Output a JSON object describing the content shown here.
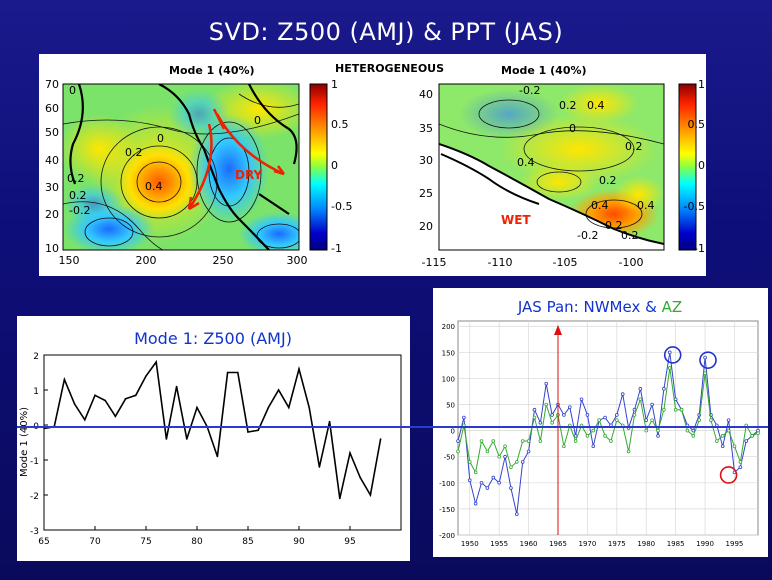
{
  "page_title": "SVD: Z500 (AMJ) & PPT (JAS)",
  "maps": {
    "left_title": "Mode 1 (40%)",
    "center_title": "HETEROGENEOUS",
    "right_title": "Mode 1 (40%)",
    "left_annotation": "DRY",
    "right_annotation": "WET",
    "left_xticks": [
      "150",
      "200",
      "250",
      "300"
    ],
    "left_yticks": [
      "70",
      "60",
      "50",
      "40",
      "30",
      "20",
      "10"
    ],
    "right_xticks": [
      "-115",
      "-110",
      "-105",
      "-100"
    ],
    "right_yticks": [
      "40",
      "35",
      "30",
      "25",
      "20"
    ],
    "colorbar_ticks": [
      "1",
      "0.5",
      "0",
      "-0.5",
      "-1"
    ],
    "left_contour_labels": [
      "0",
      "0.2",
      "0.4",
      "0.2",
      "0",
      "-0.2",
      "0.2",
      "0"
    ],
    "right_contour_labels": [
      "-0.2",
      "0.2",
      "0.4",
      "0",
      "0.2",
      "0.4",
      "0.2",
      "0.4",
      "0.4",
      "-0.2",
      "0.2",
      "0.2"
    ]
  },
  "chart_data": [
    {
      "type": "line",
      "title": "Mode 1: Z500 (AMJ)",
      "ylabel": "Mode 1 (40%)",
      "xticks": [
        "65",
        "70",
        "75",
        "80",
        "85",
        "90",
        "95"
      ],
      "yticks": [
        "2",
        "1",
        "0",
        "-1",
        "-2",
        "-3"
      ],
      "xlim": [
        65,
        100
      ],
      "ylim": [
        -3,
        2
      ],
      "x": [
        65,
        66,
        67,
        68,
        69,
        70,
        71,
        72,
        73,
        74,
        75,
        76,
        77,
        78,
        79,
        80,
        81,
        82,
        83,
        84,
        85,
        86,
        87,
        88,
        89,
        90,
        91,
        92,
        93,
        94,
        95,
        96,
        97,
        98
      ],
      "series": [
        {
          "values": [
            -0.1,
            -0.05,
            1.3,
            0.6,
            0.15,
            0.85,
            0.7,
            0.25,
            0.75,
            0.85,
            1.4,
            1.8,
            -0.4,
            1.1,
            -0.4,
            0.5,
            -0.05,
            -0.9,
            1.5,
            1.5,
            -0.2,
            -0.15,
            0.5,
            1.0,
            0.5,
            1.6,
            0.5,
            -1.2,
            0.1,
            -2.1,
            -0.8,
            -1.5,
            -2.0,
            -0.4
          ]
        }
      ],
      "color": "#000000"
    },
    {
      "type": "line",
      "title": "JAS Pan: NWMex & AZ",
      "title_parts": [
        "JAS Pan:  ",
        "NWMex",
        " & ",
        "AZ"
      ],
      "xticks": [
        "1950",
        "1955",
        "1960",
        "1965",
        "1970",
        "1975",
        "1980",
        "1985",
        "1990",
        "1995"
      ],
      "yticks": [
        "200",
        "150",
        "100",
        "50",
        "0",
        "-50",
        "-100",
        "-150",
        "-200"
      ],
      "xlim": [
        1948,
        1999
      ],
      "ylim": [
        -200,
        210
      ],
      "x": [
        1948,
        1949,
        1950,
        1951,
        1952,
        1953,
        1954,
        1955,
        1956,
        1957,
        1958,
        1959,
        1960,
        1961,
        1962,
        1963,
        1964,
        1965,
        1966,
        1967,
        1968,
        1969,
        1970,
        1971,
        1972,
        1973,
        1974,
        1975,
        1976,
        1977,
        1978,
        1979,
        1980,
        1981,
        1982,
        1983,
        1984,
        1985,
        1986,
        1987,
        1988,
        1989,
        1990,
        1991,
        1992,
        1993,
        1994,
        1995,
        1996,
        1997,
        1998,
        1999
      ],
      "series": [
        {
          "name": "NWMex",
          "color": "#3344cc",
          "values": [
            -20,
            25,
            -95,
            -140,
            -100,
            -110,
            -90,
            -100,
            -50,
            -110,
            -160,
            -60,
            -40,
            40,
            15,
            90,
            30,
            50,
            30,
            45,
            -10,
            60,
            30,
            -30,
            20,
            25,
            10,
            30,
            70,
            5,
            40,
            80,
            20,
            50,
            -10,
            80,
            150,
            60,
            40,
            10,
            0,
            30,
            140,
            30,
            10,
            -30,
            20,
            -80,
            -70,
            -20,
            -10,
            0
          ]
        },
        {
          "name": "AZ",
          "color": "#33aa33",
          "values": [
            -40,
            10,
            -60,
            -80,
            -20,
            -40,
            -20,
            -50,
            -30,
            -70,
            -60,
            -20,
            -20,
            25,
            -20,
            50,
            15,
            30,
            -30,
            10,
            -20,
            10,
            -10,
            0,
            20,
            -10,
            -20,
            20,
            10,
            -40,
            30,
            60,
            0,
            20,
            0,
            40,
            120,
            40,
            40,
            0,
            -10,
            20,
            110,
            20,
            -20,
            -10,
            0,
            -30,
            -60,
            10,
            -10,
            -5
          ]
        }
      ],
      "event_marker_x": 1965,
      "circled_years": [
        {
          "x": 1984.5,
          "y": 145,
          "color": "#2233cc"
        },
        {
          "x": 1990.5,
          "y": 135,
          "color": "#2233cc"
        },
        {
          "x": 1994,
          "y": -85,
          "color": "#dd1111"
        }
      ]
    }
  ]
}
